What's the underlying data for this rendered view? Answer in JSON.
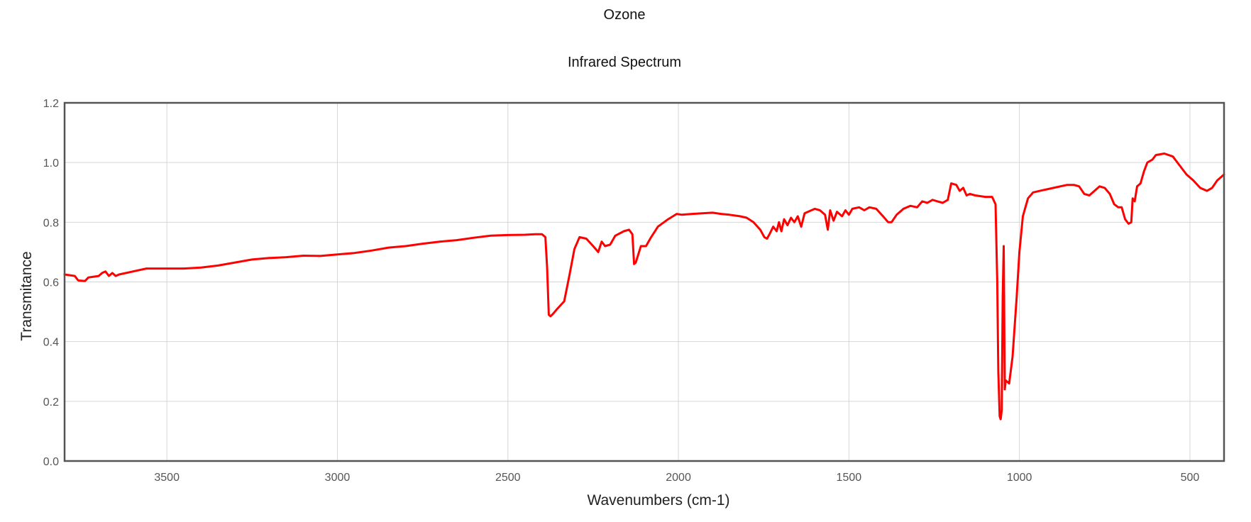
{
  "chart_data": {
    "type": "line",
    "title": "Ozone",
    "subtitle": "Infrared Spectrum",
    "xlabel": "Wavenumbers (cm-1)",
    "ylabel": "Transmitance",
    "xlim": [
      3800,
      400
    ],
    "x_reversed": true,
    "ylim": [
      0,
      1.2
    ],
    "xticks": [
      3500,
      3000,
      2500,
      2000,
      1500,
      1000,
      500
    ],
    "yticks": [
      0.0,
      0.2,
      0.4,
      0.6,
      0.8,
      1.0,
      1.2
    ],
    "xtick_labels": [
      "3500",
      "3000",
      "2500",
      "2000",
      "1500",
      "1000",
      "500"
    ],
    "ytick_labels": [
      "0.0",
      "0.2",
      "0.4",
      "0.6",
      "0.8",
      "1.0",
      "1.2"
    ],
    "grid": true,
    "line_color": "#ff0000",
    "series": [
      {
        "points": [
          [
            3800,
            0.625
          ],
          [
            3770,
            0.62
          ],
          [
            3760,
            0.605
          ],
          [
            3740,
            0.603
          ],
          [
            3730,
            0.615
          ],
          [
            3700,
            0.62
          ],
          [
            3690,
            0.63
          ],
          [
            3680,
            0.635
          ],
          [
            3670,
            0.62
          ],
          [
            3660,
            0.63
          ],
          [
            3650,
            0.62
          ],
          [
            3640,
            0.625
          ],
          [
            3600,
            0.635
          ],
          [
            3560,
            0.645
          ],
          [
            3500,
            0.645
          ],
          [
            3450,
            0.645
          ],
          [
            3400,
            0.648
          ],
          [
            3350,
            0.655
          ],
          [
            3300,
            0.665
          ],
          [
            3250,
            0.675
          ],
          [
            3200,
            0.68
          ],
          [
            3150,
            0.683
          ],
          [
            3100,
            0.688
          ],
          [
            3050,
            0.687
          ],
          [
            3000,
            0.692
          ],
          [
            2950,
            0.697
          ],
          [
            2900,
            0.705
          ],
          [
            2850,
            0.715
          ],
          [
            2800,
            0.72
          ],
          [
            2750,
            0.728
          ],
          [
            2700,
            0.735
          ],
          [
            2650,
            0.74
          ],
          [
            2600,
            0.748
          ],
          [
            2550,
            0.755
          ],
          [
            2500,
            0.757
          ],
          [
            2450,
            0.758
          ],
          [
            2420,
            0.76
          ],
          [
            2400,
            0.76
          ],
          [
            2390,
            0.75
          ],
          [
            2385,
            0.65
          ],
          [
            2380,
            0.49
          ],
          [
            2375,
            0.485
          ],
          [
            2370,
            0.49
          ],
          [
            2355,
            0.51
          ],
          [
            2335,
            0.535
          ],
          [
            2320,
            0.62
          ],
          [
            2305,
            0.71
          ],
          [
            2290,
            0.75
          ],
          [
            2270,
            0.745
          ],
          [
            2250,
            0.72
          ],
          [
            2235,
            0.7
          ],
          [
            2225,
            0.735
          ],
          [
            2215,
            0.72
          ],
          [
            2200,
            0.725
          ],
          [
            2185,
            0.755
          ],
          [
            2160,
            0.77
          ],
          [
            2145,
            0.775
          ],
          [
            2135,
            0.76
          ],
          [
            2130,
            0.66
          ],
          [
            2125,
            0.665
          ],
          [
            2110,
            0.72
          ],
          [
            2095,
            0.72
          ],
          [
            2080,
            0.75
          ],
          [
            2060,
            0.785
          ],
          [
            2030,
            0.81
          ],
          [
            2005,
            0.828
          ],
          [
            1990,
            0.825
          ],
          [
            1960,
            0.828
          ],
          [
            1930,
            0.83
          ],
          [
            1900,
            0.832
          ],
          [
            1875,
            0.828
          ],
          [
            1850,
            0.825
          ],
          [
            1820,
            0.82
          ],
          [
            1800,
            0.815
          ],
          [
            1780,
            0.8
          ],
          [
            1760,
            0.775
          ],
          [
            1748,
            0.75
          ],
          [
            1740,
            0.745
          ],
          [
            1732,
            0.762
          ],
          [
            1722,
            0.785
          ],
          [
            1712,
            0.77
          ],
          [
            1705,
            0.8
          ],
          [
            1698,
            0.77
          ],
          [
            1690,
            0.81
          ],
          [
            1680,
            0.79
          ],
          [
            1670,
            0.815
          ],
          [
            1660,
            0.8
          ],
          [
            1650,
            0.82
          ],
          [
            1640,
            0.785
          ],
          [
            1630,
            0.83
          ],
          [
            1610,
            0.84
          ],
          [
            1600,
            0.845
          ],
          [
            1585,
            0.84
          ],
          [
            1570,
            0.825
          ],
          [
            1562,
            0.775
          ],
          [
            1555,
            0.84
          ],
          [
            1545,
            0.805
          ],
          [
            1535,
            0.835
          ],
          [
            1520,
            0.82
          ],
          [
            1510,
            0.84
          ],
          [
            1500,
            0.825
          ],
          [
            1490,
            0.845
          ],
          [
            1470,
            0.85
          ],
          [
            1455,
            0.84
          ],
          [
            1440,
            0.85
          ],
          [
            1420,
            0.845
          ],
          [
            1400,
            0.82
          ],
          [
            1385,
            0.8
          ],
          [
            1375,
            0.8
          ],
          [
            1360,
            0.825
          ],
          [
            1340,
            0.845
          ],
          [
            1320,
            0.855
          ],
          [
            1300,
            0.85
          ],
          [
            1285,
            0.87
          ],
          [
            1270,
            0.865
          ],
          [
            1255,
            0.875
          ],
          [
            1240,
            0.87
          ],
          [
            1225,
            0.865
          ],
          [
            1210,
            0.875
          ],
          [
            1200,
            0.93
          ],
          [
            1185,
            0.925
          ],
          [
            1175,
            0.905
          ],
          [
            1165,
            0.915
          ],
          [
            1155,
            0.89
          ],
          [
            1145,
            0.895
          ],
          [
            1130,
            0.89
          ],
          [
            1100,
            0.885
          ],
          [
            1080,
            0.885
          ],
          [
            1070,
            0.86
          ],
          [
            1065,
            0.6
          ],
          [
            1062,
            0.3
          ],
          [
            1058,
            0.15
          ],
          [
            1055,
            0.14
          ],
          [
            1052,
            0.17
          ],
          [
            1049,
            0.55
          ],
          [
            1046,
            0.72
          ],
          [
            1043,
            0.24
          ],
          [
            1040,
            0.27
          ],
          [
            1030,
            0.26
          ],
          [
            1020,
            0.35
          ],
          [
            1008,
            0.55
          ],
          [
            1000,
            0.7
          ],
          [
            990,
            0.82
          ],
          [
            975,
            0.88
          ],
          [
            960,
            0.9
          ],
          [
            940,
            0.905
          ],
          [
            900,
            0.915
          ],
          [
            860,
            0.925
          ],
          [
            840,
            0.925
          ],
          [
            825,
            0.92
          ],
          [
            810,
            0.895
          ],
          [
            795,
            0.89
          ],
          [
            780,
            0.905
          ],
          [
            765,
            0.92
          ],
          [
            750,
            0.915
          ],
          [
            735,
            0.895
          ],
          [
            722,
            0.86
          ],
          [
            710,
            0.85
          ],
          [
            700,
            0.85
          ],
          [
            690,
            0.81
          ],
          [
            680,
            0.795
          ],
          [
            672,
            0.8
          ],
          [
            668,
            0.88
          ],
          [
            662,
            0.87
          ],
          [
            655,
            0.92
          ],
          [
            645,
            0.93
          ],
          [
            635,
            0.97
          ],
          [
            625,
            1.0
          ],
          [
            610,
            1.01
          ],
          [
            600,
            1.025
          ],
          [
            575,
            1.03
          ],
          [
            550,
            1.02
          ],
          [
            530,
            0.99
          ],
          [
            510,
            0.96
          ],
          [
            490,
            0.94
          ],
          [
            470,
            0.915
          ],
          [
            450,
            0.905
          ],
          [
            435,
            0.915
          ],
          [
            420,
            0.94
          ],
          [
            400,
            0.96
          ]
        ]
      }
    ]
  }
}
